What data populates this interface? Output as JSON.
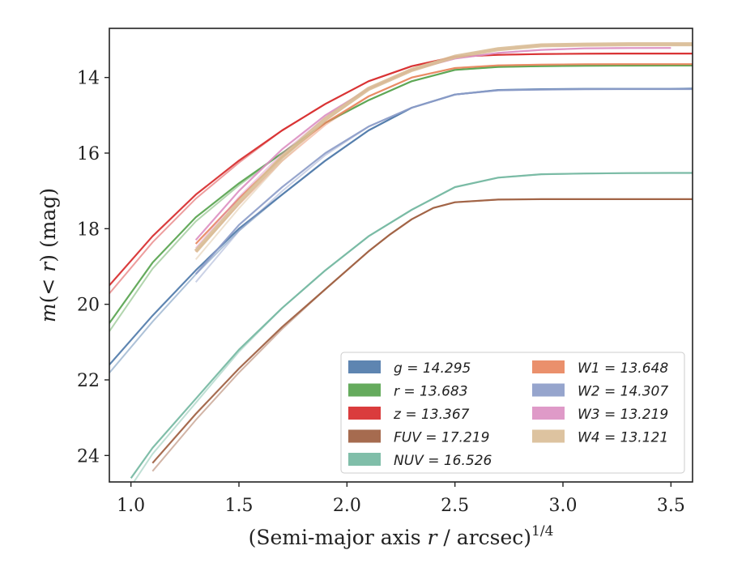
{
  "chart_data": {
    "type": "line",
    "title": "",
    "xlabel": "(Semi-major axis r / arcsec)",
    "xlabel_parts": {
      "pre": "(Semi-major axis ",
      "var": "r",
      "post": " / arcsec)",
      "sup": "1/4"
    },
    "ylabel": "m(< r) (mag)",
    "ylabel_parts": {
      "m": "m",
      "open": "(",
      "lt": "< ",
      "r": "r",
      "close": ") (mag)"
    },
    "xlim": [
      0.9,
      3.6
    ],
    "ylim": [
      24.7,
      12.7
    ],
    "y_inverted": true,
    "xticks": [
      1.0,
      1.5,
      2.0,
      2.5,
      3.0,
      3.5
    ],
    "xtick_labels": [
      "1.0",
      "1.5",
      "2.0",
      "2.5",
      "3.0",
      "3.5"
    ],
    "yticks": [
      14,
      16,
      18,
      20,
      22,
      24
    ],
    "ytick_labels": [
      "14",
      "16",
      "18",
      "20",
      "22",
      "24"
    ],
    "grid": false,
    "legend": {
      "placement": "lower-right",
      "columns": 2
    },
    "series": [
      {
        "key": "g",
        "name": "g = 14.295",
        "color": "#4c78a8",
        "x": [
          0.9,
          1.1,
          1.3,
          1.5,
          1.7,
          1.9,
          2.1,
          2.3,
          2.5,
          2.7,
          2.9,
          3.1,
          3.3,
          3.5,
          3.6
        ],
        "y": [
          21.6,
          20.3,
          19.1,
          18.0,
          17.1,
          16.2,
          15.4,
          14.8,
          14.45,
          14.33,
          14.31,
          14.3,
          14.3,
          14.3,
          14.295
        ]
      },
      {
        "key": "r",
        "name": "r = 13.683",
        "color": "#54a24b",
        "x": [
          0.9,
          1.1,
          1.3,
          1.5,
          1.7,
          1.9,
          2.1,
          2.3,
          2.5,
          2.7,
          2.9,
          3.1,
          3.3,
          3.5,
          3.6
        ],
        "y": [
          20.5,
          18.9,
          17.7,
          16.8,
          16.0,
          15.2,
          14.6,
          14.1,
          13.8,
          13.72,
          13.7,
          13.69,
          13.685,
          13.683,
          13.683
        ]
      },
      {
        "key": "z",
        "name": "z = 13.367",
        "color": "#d62728",
        "x": [
          0.9,
          1.1,
          1.3,
          1.5,
          1.7,
          1.9,
          2.1,
          2.3,
          2.5,
          2.7,
          2.9,
          3.1,
          3.3,
          3.5,
          3.6
        ],
        "y": [
          19.5,
          18.2,
          17.1,
          16.2,
          15.4,
          14.7,
          14.1,
          13.7,
          13.45,
          13.4,
          13.38,
          13.37,
          13.367,
          13.367,
          13.367
        ]
      },
      {
        "key": "FUV",
        "name": "FUV = 17.219",
        "color": "#9c5b3c",
        "x": [
          1.1,
          1.3,
          1.5,
          1.7,
          1.9,
          2.1,
          2.2,
          2.3,
          2.4,
          2.5,
          2.7,
          2.9,
          3.1,
          3.35,
          3.6
        ],
        "y": [
          24.2,
          22.9,
          21.7,
          20.6,
          19.6,
          18.6,
          18.15,
          17.75,
          17.45,
          17.3,
          17.23,
          17.22,
          17.22,
          17.22,
          17.219
        ]
      },
      {
        "key": "NUV",
        "name": "NUV = 16.526",
        "color": "#72b7a0",
        "x": [
          1.0,
          1.1,
          1.3,
          1.5,
          1.7,
          1.9,
          2.1,
          2.3,
          2.5,
          2.7,
          2.9,
          3.1,
          3.3,
          3.5,
          3.6
        ],
        "y": [
          24.6,
          23.8,
          22.5,
          21.2,
          20.1,
          19.1,
          18.2,
          17.5,
          16.9,
          16.65,
          16.56,
          16.54,
          16.53,
          16.526,
          16.526
        ]
      },
      {
        "key": "W1",
        "name": "W1 = 13.648",
        "color": "#e8845c",
        "x": [
          1.3,
          1.5,
          1.7,
          1.9,
          2.1,
          2.3,
          2.5,
          2.7,
          2.9,
          3.1,
          3.3,
          3.5,
          3.6
        ],
        "y": [
          18.4,
          17.2,
          16.1,
          15.2,
          14.5,
          14.0,
          13.75,
          13.68,
          13.66,
          13.65,
          13.648,
          13.648,
          13.648
        ]
      },
      {
        "key": "W2",
        "name": "W2 = 14.307",
        "color": "#8b9bc8",
        "x": [
          1.3,
          1.5,
          1.7,
          1.9,
          2.1,
          2.3,
          2.5,
          2.7,
          2.9,
          3.1,
          3.3,
          3.5,
          3.6
        ],
        "y": [
          19.2,
          17.9,
          16.9,
          16.0,
          15.3,
          14.8,
          14.45,
          14.34,
          14.32,
          14.31,
          14.307,
          14.307,
          14.307
        ]
      },
      {
        "key": "W3",
        "name": "W3 = 13.219",
        "color": "#dc8fc2",
        "x": [
          1.3,
          1.5,
          1.7,
          1.9,
          2.1,
          2.3,
          2.5,
          2.7,
          2.9,
          3.1,
          3.3,
          3.5
        ],
        "y": [
          18.3,
          17.0,
          15.9,
          15.0,
          14.3,
          13.8,
          13.5,
          13.35,
          13.27,
          13.23,
          13.22,
          13.219
        ]
      },
      {
        "key": "W4",
        "name": "W4 = 13.121",
        "color": "#d9bd96",
        "x": [
          1.3,
          1.5,
          1.7,
          1.9,
          2.1,
          2.3,
          2.5,
          2.7,
          2.9,
          3.1,
          3.3,
          3.5,
          3.6
        ],
        "y": [
          18.6,
          17.3,
          16.1,
          15.1,
          14.3,
          13.8,
          13.45,
          13.25,
          13.15,
          13.13,
          13.12,
          13.121,
          13.121
        ]
      }
    ]
  }
}
